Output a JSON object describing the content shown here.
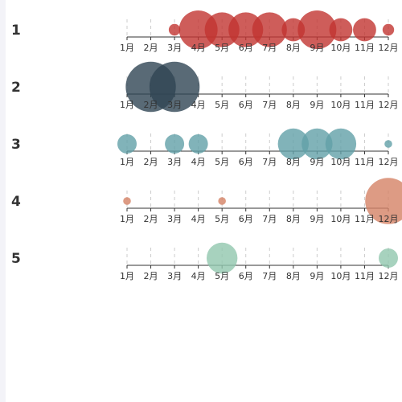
{
  "chart_data": {
    "type": "scatter",
    "categories": [
      "1月",
      "2月",
      "3月",
      "4月",
      "5月",
      "6月",
      "7月",
      "8月",
      "9月",
      "10月",
      "11月",
      "12月"
    ],
    "series": [
      {
        "name": "1",
        "color": "#c23531",
        "values": [
          0,
          0,
          3,
          10,
          9,
          9,
          9,
          6,
          10,
          6,
          6,
          3
        ]
      },
      {
        "name": "2",
        "color": "#2f4554",
        "values": [
          0,
          13,
          13,
          0,
          0,
          0,
          0,
          0,
          0,
          0,
          0,
          0
        ]
      },
      {
        "name": "3",
        "color": "#61a0a8",
        "values": [
          5,
          0,
          5,
          5,
          0,
          0,
          0,
          8,
          8,
          8,
          0,
          2
        ]
      },
      {
        "name": "4",
        "color": "#d48265",
        "values": [
          2,
          0,
          0,
          0,
          2,
          0,
          0,
          0,
          0,
          0,
          0,
          12
        ]
      },
      {
        "name": "5",
        "color": "#91c7ae",
        "values": [
          0,
          0,
          0,
          0,
          8,
          0,
          0,
          0,
          0,
          0,
          0,
          5
        ]
      }
    ],
    "xlabel": "",
    "ylabel": "",
    "grid": true,
    "legend": "none"
  }
}
